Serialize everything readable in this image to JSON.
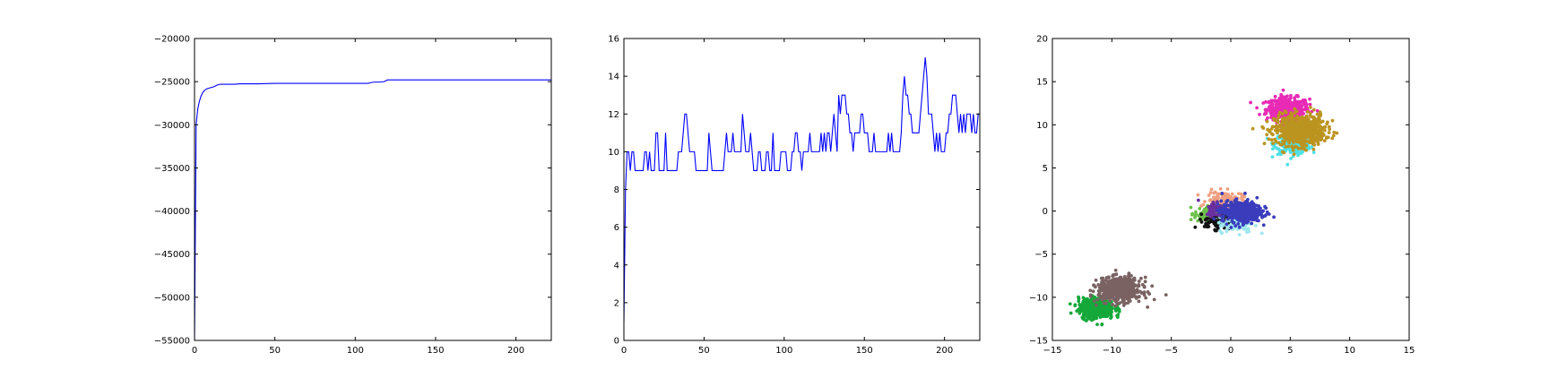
{
  "colors": {
    "line": "#0000ff",
    "axes": "#000000",
    "background": "#ffffff"
  },
  "chart_data": [
    {
      "type": "line",
      "title": "",
      "xlabel": "",
      "ylabel": "",
      "xlim": [
        0,
        222
      ],
      "ylim": [
        -55000,
        -20000
      ],
      "grid": false,
      "legend": "none",
      "xticks": [
        0,
        50,
        100,
        150,
        200
      ],
      "yticks": [
        -55000,
        -50000,
        -45000,
        -40000,
        -35000,
        -30000,
        -25000,
        -20000
      ],
      "xtick_labels": [
        "0",
        "50",
        "100",
        "150",
        "200"
      ],
      "ytick_labels": [
        "−55000",
        "−50000",
        "−45000",
        "−40000",
        "−35000",
        "−30000",
        "−25000",
        "−20000"
      ],
      "series": [
        {
          "x": [
            0,
            1,
            2,
            3,
            4,
            5,
            6,
            7,
            8,
            10,
            12,
            14,
            16,
            20,
            25,
            28,
            30,
            40,
            50,
            60,
            80,
            100,
            108,
            110,
            112,
            115,
            118,
            120,
            130,
            150,
            170,
            190,
            210,
            222
          ],
          "y": [
            -55000,
            -30000,
            -28200,
            -27300,
            -26700,
            -26300,
            -26050,
            -25900,
            -25800,
            -25700,
            -25600,
            -25400,
            -25300,
            -25300,
            -25300,
            -25250,
            -25250,
            -25250,
            -25200,
            -25200,
            -25200,
            -25200,
            -25200,
            -25100,
            -25050,
            -25050,
            -25000,
            -24800,
            -24800,
            -24800,
            -24800,
            -24800,
            -24800,
            -24800
          ]
        }
      ]
    },
    {
      "type": "line",
      "title": "",
      "xlabel": "",
      "ylabel": "",
      "xlim": [
        0,
        222
      ],
      "ylim": [
        0,
        16
      ],
      "grid": false,
      "legend": "none",
      "xticks": [
        0,
        50,
        100,
        150,
        200
      ],
      "yticks": [
        0,
        2,
        4,
        6,
        8,
        10,
        12,
        14,
        16
      ],
      "xtick_labels": [
        "0",
        "50",
        "100",
        "150",
        "200"
      ],
      "ytick_labels": [
        "0",
        "2",
        "4",
        "6",
        "8",
        "10",
        "12",
        "14",
        "16"
      ],
      "series": [
        {
          "y": [
            1,
            8,
            10,
            10,
            9,
            10,
            10,
            9,
            9,
            9,
            9,
            9,
            9,
            10,
            10,
            9,
            10,
            9,
            9,
            9,
            11,
            11,
            9,
            9,
            9,
            9,
            11,
            9,
            9,
            9,
            9,
            9,
            9,
            9,
            10,
            10,
            10,
            11,
            12,
            12,
            11,
            10,
            10,
            10,
            10,
            9,
            9,
            9,
            9,
            9,
            9,
            9,
            9,
            11,
            10,
            9,
            9,
            9,
            9,
            9,
            9,
            9,
            9,
            10,
            11,
            10,
            10,
            10,
            11,
            10,
            10,
            10,
            10,
            10,
            12,
            11,
            10,
            10,
            10,
            11,
            10,
            9,
            9,
            9,
            10,
            10,
            9,
            9,
            9,
            10,
            10,
            9,
            9,
            11,
            9,
            9,
            9,
            9,
            10,
            10,
            10,
            10,
            9,
            9,
            9,
            10,
            10,
            11,
            11,
            10,
            10,
            9,
            10,
            10,
            10,
            10,
            11,
            10,
            10,
            10,
            10,
            10,
            10,
            11,
            10,
            11,
            10,
            11,
            11,
            10,
            11,
            12,
            11,
            10,
            13,
            12,
            13,
            13,
            13,
            12,
            12,
            11,
            11,
            10,
            11,
            11,
            11,
            11,
            12,
            12,
            11,
            11,
            11,
            10,
            10,
            10,
            11,
            10,
            10,
            10,
            10,
            10,
            10,
            10,
            10,
            11,
            10,
            11,
            10,
            10,
            10,
            10,
            10,
            11,
            13,
            14,
            13,
            13,
            12,
            12,
            11,
            11,
            11,
            11,
            11,
            12,
            13,
            14,
            15,
            14,
            12,
            12,
            12,
            11,
            10,
            11,
            10,
            11,
            10,
            10,
            10,
            11,
            11,
            12,
            12,
            13,
            13,
            13,
            12,
            11,
            12,
            11,
            12,
            11,
            12,
            12,
            12,
            11,
            12,
            11,
            11,
            12,
            12,
            11,
            11
          ]
        }
      ]
    },
    {
      "type": "scatter",
      "title": "",
      "xlabel": "",
      "ylabel": "",
      "xlim": [
        -15,
        15
      ],
      "ylim": [
        -15,
        20
      ],
      "grid": false,
      "legend": "none",
      "xticks": [
        -15,
        -10,
        -5,
        0,
        5,
        10,
        15
      ],
      "yticks": [
        -15,
        -10,
        -5,
        0,
        5,
        10,
        15,
        20
      ],
      "xtick_labels": [
        "−15",
        "−10",
        "−5",
        "0",
        "5",
        "10",
        "15"
      ],
      "ytick_labels": [
        "−15",
        "−10",
        "−5",
        "0",
        "5",
        "10",
        "15",
        "20"
      ],
      "clusters": [
        {
          "color": "#e82ab5",
          "center": [
            4.8,
            11.8
          ],
          "spread": [
            1.2,
            0.9
          ],
          "count": 420
        },
        {
          "color": "#4fe0e6",
          "center": [
            5.2,
            7.8
          ],
          "spread": [
            1.0,
            0.8
          ],
          "count": 260
        },
        {
          "color": "#bb9420",
          "center": [
            5.8,
            9.4
          ],
          "spread": [
            1.4,
            1.2
          ],
          "count": 650
        },
        {
          "color": "#f0a080",
          "center": [
            -0.5,
            1.2
          ],
          "spread": [
            1.0,
            0.7
          ],
          "count": 140
        },
        {
          "color": "#6cc04a",
          "center": [
            -2.0,
            -0.3
          ],
          "spread": [
            0.7,
            0.6
          ],
          "count": 110
        },
        {
          "color": "#111111",
          "center": [
            -1.0,
            -1.2
          ],
          "spread": [
            0.8,
            0.6
          ],
          "count": 110
        },
        {
          "color": "#9ee8ee",
          "center": [
            0.5,
            -1.6
          ],
          "spread": [
            1.0,
            0.6
          ],
          "count": 110
        },
        {
          "color": "#6a2fa0",
          "center": [
            -1.2,
            0.3
          ],
          "spread": [
            0.6,
            0.6
          ],
          "count": 60
        },
        {
          "color": "#3a3cbc",
          "center": [
            0.9,
            -0.1
          ],
          "spread": [
            1.1,
            0.8
          ],
          "count": 480
        },
        {
          "color": "#15a83a",
          "center": [
            -11.3,
            -11.3
          ],
          "spread": [
            1.0,
            0.8
          ],
          "count": 420
        },
        {
          "color": "#7a6262",
          "center": [
            -9.3,
            -9.1
          ],
          "spread": [
            1.2,
            0.9
          ],
          "count": 620
        }
      ]
    }
  ]
}
